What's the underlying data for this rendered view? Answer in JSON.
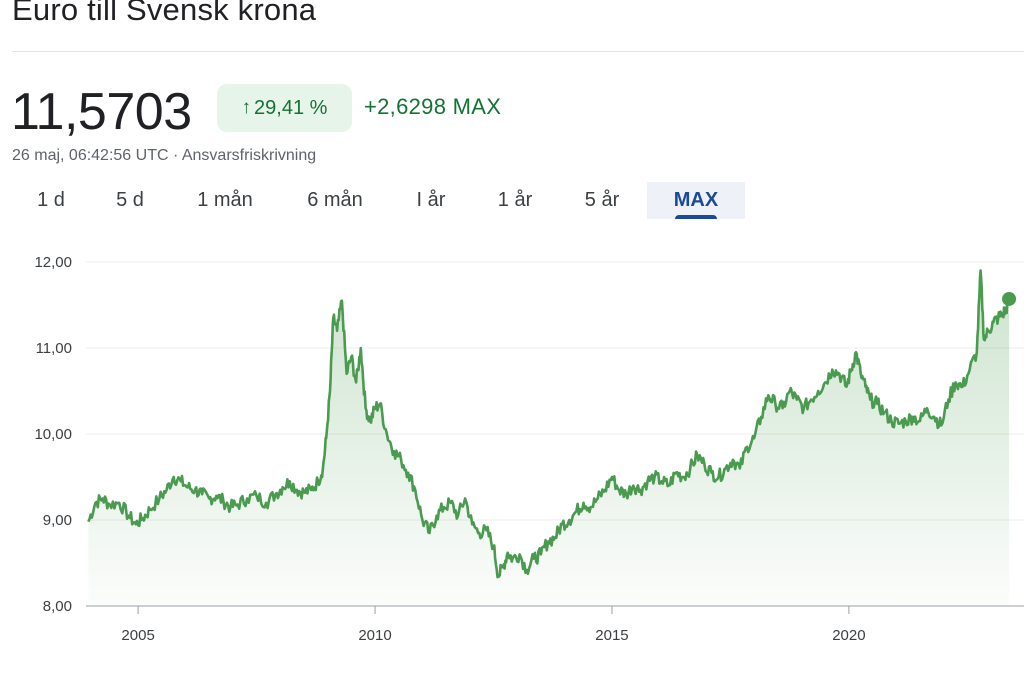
{
  "header": {
    "title": "Euro till Svensk krona"
  },
  "quote": {
    "price": "11,5703",
    "change_arrow": "↑",
    "change_percent": "29,41 %",
    "change_absolute": "+2,6298 MAX",
    "meta_text": "26 maj, 06:42:56 UTC · Ansvarsfriskrivning"
  },
  "range_tabs": [
    {
      "label": "1 d",
      "active": false
    },
    {
      "label": "5 d",
      "active": false
    },
    {
      "label": "1 mån",
      "active": false
    },
    {
      "label": "6 mån",
      "active": false
    },
    {
      "label": "I år",
      "active": false
    },
    {
      "label": "1 år",
      "active": false
    },
    {
      "label": "5 år",
      "active": false
    },
    {
      "label": "MAX",
      "active": true
    }
  ],
  "colors": {
    "line": "#4a9a4f",
    "positive_text": "#137333",
    "positive_bg": "#e6f4ea",
    "active_tab": "#1a4a9b"
  },
  "chart_data": {
    "type": "area",
    "title": "",
    "xlabel": "",
    "ylabel": "",
    "ylim": [
      8.0,
      12.0
    ],
    "xlim": [
      2003.9,
      2023.4
    ],
    "y_ticks": [
      "12,00",
      "11,00",
      "10,00",
      "9,00",
      "8,00"
    ],
    "y_tick_values": [
      12,
      11,
      10,
      9,
      8
    ],
    "x_ticks": [
      "2005",
      "2010",
      "2015",
      "2020"
    ],
    "x_tick_values": [
      2005,
      2010,
      2015,
      2020
    ],
    "gridlines": true,
    "series": [
      {
        "x": [
          2003.95,
          2004.1,
          2004.25,
          2004.4,
          2004.6,
          2004.8,
          2004.95,
          2005.1,
          2005.25,
          2005.45,
          2005.6,
          2005.75,
          2005.9,
          2006.05,
          2006.2,
          2006.35,
          2006.5,
          2006.65,
          2006.8,
          2006.95,
          2007.1,
          2007.3,
          2007.5,
          2007.7,
          2007.9,
          2008.05,
          2008.2,
          2008.35,
          2008.5,
          2008.65,
          2008.8,
          2008.9,
          2008.97,
          2009.05,
          2009.12,
          2009.2,
          2009.3,
          2009.4,
          2009.5,
          2009.6,
          2009.7,
          2009.8,
          2009.9,
          2010.0,
          2010.1,
          2010.25,
          2010.4,
          2010.55,
          2010.7,
          2010.85,
          2011.0,
          2011.15,
          2011.3,
          2011.45,
          2011.6,
          2011.75,
          2011.9,
          2012.05,
          2012.2,
          2012.35,
          2012.5,
          2012.6,
          2012.7,
          2012.8,
          2012.9,
          2013.05,
          2013.2,
          2013.35,
          2013.5,
          2013.65,
          2013.8,
          2013.95,
          2014.1,
          2014.25,
          2014.4,
          2014.55,
          2014.7,
          2014.85,
          2015.0,
          2015.15,
          2015.3,
          2015.45,
          2015.6,
          2015.75,
          2015.9,
          2016.05,
          2016.2,
          2016.35,
          2016.5,
          2016.65,
          2016.8,
          2016.95,
          2017.1,
          2017.25,
          2017.4,
          2017.55,
          2017.7,
          2017.85,
          2018.0,
          2018.15,
          2018.3,
          2018.45,
          2018.6,
          2018.75,
          2018.9,
          2019.05,
          2019.2,
          2019.35,
          2019.5,
          2019.65,
          2019.8,
          2019.95,
          2020.05,
          2020.15,
          2020.25,
          2020.35,
          2020.45,
          2020.6,
          2020.75,
          2020.9,
          2021.05,
          2021.2,
          2021.35,
          2021.5,
          2021.65,
          2021.8,
          2021.95,
          2022.1,
          2022.25,
          2022.4,
          2022.55,
          2022.7,
          2022.78,
          2022.85,
          2022.95,
          2023.05,
          2023.15,
          2023.25,
          2023.32,
          2023.38
        ],
        "y": [
          8.98,
          9.2,
          9.25,
          9.18,
          9.2,
          9.05,
          8.95,
          9.02,
          9.12,
          9.25,
          9.35,
          9.5,
          9.45,
          9.38,
          9.35,
          9.3,
          9.25,
          9.28,
          9.22,
          9.15,
          9.18,
          9.25,
          9.28,
          9.2,
          9.3,
          9.38,
          9.45,
          9.35,
          9.32,
          9.35,
          9.45,
          9.6,
          9.95,
          10.5,
          11.35,
          11.2,
          11.55,
          10.7,
          10.9,
          10.6,
          11.0,
          10.3,
          10.15,
          10.3,
          10.35,
          10.0,
          9.8,
          9.7,
          9.55,
          9.35,
          9.0,
          8.85,
          9.05,
          9.15,
          9.2,
          9.05,
          9.25,
          8.95,
          8.85,
          8.88,
          8.7,
          8.35,
          8.45,
          8.62,
          8.55,
          8.6,
          8.42,
          8.55,
          8.6,
          8.75,
          8.8,
          8.95,
          9.0,
          9.1,
          9.2,
          9.15,
          9.25,
          9.35,
          9.5,
          9.35,
          9.3,
          9.4,
          9.35,
          9.45,
          9.5,
          9.45,
          9.4,
          9.55,
          9.5,
          9.6,
          9.75,
          9.65,
          9.55,
          9.5,
          9.6,
          9.7,
          9.6,
          9.85,
          9.95,
          10.2,
          10.45,
          10.35,
          10.3,
          10.5,
          10.4,
          10.3,
          10.4,
          10.5,
          10.6,
          10.75,
          10.7,
          10.55,
          10.75,
          10.95,
          10.7,
          10.55,
          10.4,
          10.35,
          10.25,
          10.15,
          10.12,
          10.15,
          10.2,
          10.15,
          10.3,
          10.2,
          10.1,
          10.4,
          10.6,
          10.55,
          10.75,
          10.95,
          11.9,
          11.1,
          11.2,
          11.3,
          11.35,
          11.4,
          11.45,
          11.57
        ]
      }
    ],
    "last_point": {
      "x": 2023.38,
      "y": 11.57
    }
  }
}
